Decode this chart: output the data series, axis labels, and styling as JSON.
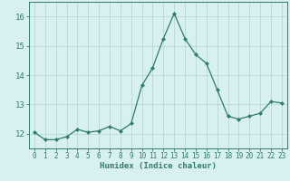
{
  "x": [
    0,
    1,
    2,
    3,
    4,
    5,
    6,
    7,
    8,
    9,
    10,
    11,
    12,
    13,
    14,
    15,
    16,
    17,
    18,
    19,
    20,
    21,
    22,
    23
  ],
  "y": [
    12.05,
    11.8,
    11.8,
    11.9,
    12.15,
    12.05,
    12.1,
    12.25,
    12.1,
    12.35,
    13.65,
    14.25,
    15.25,
    16.1,
    15.25,
    14.7,
    14.4,
    13.5,
    12.6,
    12.5,
    12.6,
    12.7,
    13.1,
    13.05
  ],
  "line_color": "#2d7d6f",
  "marker": "D",
  "marker_size": 2.2,
  "bg_color": "#d8f0f0",
  "grid_color": "#b8d8d8",
  "xlabel": "Humidex (Indice chaleur)",
  "xlim": [
    -0.5,
    23.5
  ],
  "ylim": [
    11.5,
    16.5
  ],
  "yticks": [
    12,
    13,
    14,
    15,
    16
  ],
  "xticks": [
    0,
    1,
    2,
    3,
    4,
    5,
    6,
    7,
    8,
    9,
    10,
    11,
    12,
    13,
    14,
    15,
    16,
    17,
    18,
    19,
    20,
    21,
    22,
    23
  ],
  "xtick_labels": [
    "0",
    "1",
    "2",
    "3",
    "4",
    "5",
    "6",
    "7",
    "8",
    "9",
    "10",
    "11",
    "12",
    "13",
    "14",
    "15",
    "16",
    "17",
    "18",
    "19",
    "20",
    "21",
    "22",
    "23"
  ],
  "tick_color": "#2d7d6f",
  "label_color": "#2d7d6f",
  "spine_color": "#2d7d6f",
  "tick_fontsize": 5.5,
  "ytick_fontsize": 6.5,
  "xlabel_fontsize": 6.5
}
